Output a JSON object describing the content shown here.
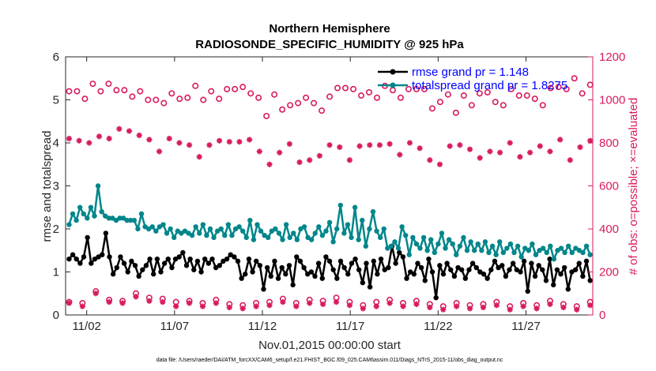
{
  "chart_data": {
    "type": "line",
    "title": "Northern Hemisphere",
    "subtitle": "RADIOSONDE_SPECIFIC_HUMIDITY @ 925 hPa",
    "xlabel": "Nov.01,2015 00:00:00 start",
    "ylabel": "rmse and totalspread",
    "ylabel_right": "# of obs: o=possible; ×=evaluated",
    "xlim": [
      0.8,
      30.8
    ],
    "ylim": [
      0,
      6
    ],
    "ylim_right": [
      0,
      1200
    ],
    "x_ticks": [
      2,
      7,
      12,
      17,
      22,
      27
    ],
    "x_tick_labels": [
      "11/02",
      "11/07",
      "11/12",
      "11/17",
      "11/22",
      "11/27"
    ],
    "y_ticks": [
      0,
      1,
      2,
      3,
      4,
      5,
      6
    ],
    "y_right_ticks": [
      0,
      200,
      400,
      600,
      800,
      1000,
      1200
    ],
    "legend": {
      "location": "top-right",
      "entries": [
        "rmse grand pr = 1.148",
        "totalspread grand pr = 1.8275"
      ]
    },
    "footnote": "data file: /Users/raeder/DAI/ATM_forcXX/CAM6_setup/f.e21.FHIST_BGC.f09_025.CAM6assim.011/Diags_NTrS_2015-11/obs_diag_output.nc",
    "series": [
      {
        "name": "rmse",
        "axis": "left",
        "color": "#000000",
        "marker": "dot",
        "values": [
          1.3,
          1.4,
          1.3,
          1.2,
          1.35,
          1.8,
          1.2,
          1.3,
          1.35,
          1.4,
          1.9,
          1.35,
          0.95,
          1.1,
          1.35,
          1.2,
          1.0,
          1.25,
          1.15,
          0.9,
          1.05,
          1.15,
          1.3,
          0.95,
          1.3,
          1.0,
          1.2,
          1.3,
          1.1,
          1.3,
          1.35,
          1.45,
          1.15,
          1.3,
          1.05,
          1.25,
          1.0,
          1.3,
          1.2,
          1.3,
          1.1,
          1.15,
          1.25,
          1.3,
          1.4,
          1.35,
          1.25,
          0.85,
          0.95,
          1.3,
          1.0,
          1.25,
          1.15,
          0.6,
          1.1,
          0.9,
          1.25,
          0.85,
          1.1,
          0.95,
          1.15,
          0.7,
          1.35,
          1.25,
          1.1,
          0.95,
          1.0,
          0.9,
          1.2,
          0.85,
          1.35,
          1.25,
          1.05,
          0.85,
          1.25,
          1.1,
          0.95,
          1.2,
          1.3,
          1.05,
          0.75,
          1.2,
          0.65,
          1.25,
          0.95,
          1.3,
          1.05,
          1.1,
          1.6,
          1.2,
          1.45,
          1.35,
          0.85,
          1.0,
          0.95,
          1.2,
          1.1,
          0.8,
          1.3,
          1.0,
          0.4,
          1.15,
          0.95,
          1.2,
          1.05,
          0.9,
          1.1,
          1.05,
          0.85,
          1.05,
          1.2,
          1.1,
          1.0,
          0.95,
          0.85,
          1.05,
          1.25,
          1.1,
          1.15,
          0.9,
          1.05,
          1.2,
          1.05,
          1.0,
          1.25,
          0.55,
          1.2,
          0.9,
          1.15,
          1.05,
          0.8,
          1.3,
          0.7,
          1.05,
          0.95,
          1.1,
          0.6,
          1.0,
          1.05,
          1.2,
          0.9,
          1.25,
          0.8
        ]
      },
      {
        "name": "totalspread",
        "axis": "left",
        "color": "#00868b",
        "marker": "dot",
        "values": [
          2.1,
          2.35,
          2.2,
          2.5,
          2.35,
          2.25,
          2.5,
          2.3,
          3.0,
          2.4,
          2.3,
          2.25,
          2.25,
          2.2,
          2.25,
          2.25,
          2.2,
          2.2,
          2.2,
          2.0,
          2.35,
          2.05,
          2.0,
          2.05,
          1.95,
          2.05,
          2.1,
          1.9,
          2.0,
          1.8,
          1.95,
          1.9,
          1.95,
          1.9,
          1.85,
          2.05,
          1.9,
          2.1,
          1.85,
          2.0,
          1.8,
          1.95,
          2.0,
          1.85,
          2.1,
          1.85,
          2.0,
          2.05,
          1.95,
          1.8,
          2.2,
          1.75,
          2.1,
          1.95,
          1.85,
          1.8,
          1.95,
          2.0,
          1.9,
          1.75,
          2.1,
          1.8,
          1.9,
          1.75,
          2.0,
          2.05,
          1.8,
          1.75,
          1.9,
          2.05,
          1.85,
          1.95,
          2.15,
          1.7,
          2.0,
          2.55,
          1.9,
          2.1,
          1.8,
          2.5,
          1.75,
          2.2,
          1.6,
          2.0,
          2.4,
          1.95,
          1.8,
          2.0,
          1.55,
          1.6,
          1.7,
          1.55,
          2.05,
          1.85,
          1.4,
          1.8,
          1.65,
          1.55,
          1.8,
          1.5,
          1.75,
          1.45,
          1.65,
          1.9,
          1.55,
          1.75,
          1.65,
          1.4,
          1.6,
          1.8,
          1.5,
          1.7,
          1.5,
          1.65,
          1.5,
          1.7,
          1.45,
          1.6,
          1.4,
          1.7,
          1.45,
          1.55,
          1.65,
          1.45,
          1.6,
          1.35,
          1.55,
          1.5,
          1.65,
          1.4,
          1.5,
          1.55,
          1.45,
          1.6,
          1.3,
          1.5,
          1.55,
          1.45,
          1.6,
          1.45,
          1.55,
          1.5,
          1.45,
          1.6,
          1.4
        ]
      },
      {
        "name": "obs possible (upper)",
        "axis": "right",
        "color": "#d81b60",
        "marker": "o",
        "values": [
          1040,
          1040,
          1005,
          1075,
          1040,
          1075,
          1045,
          1045,
          1015,
          1040,
          1000,
          1000,
          985,
          1030,
          1005,
          1010,
          1065,
          1000,
          1040,
          1005,
          1050,
          1050,
          1060,
          1030,
          1010,
          925,
          1025,
          955,
          975,
          985,
          1010,
          985,
          950,
          1015,
          1055,
          1055,
          1050,
          1020,
          1035,
          1010,
          1065,
          1045,
          1010,
          1050,
          1050,
          1050,
          960,
          990,
          1025,
          940,
          1020,
          975,
          1030,
          1035,
          990,
          975,
          1050,
          1020,
          1020,
          1005,
          975,
          1055,
          1060,
          1050,
          1100,
          1030,
          1070
        ]
      },
      {
        "name": "obs evaluated (upper)",
        "axis": "right",
        "color": "#d81b60",
        "marker": "x",
        "values": [
          820,
          810,
          800,
          830,
          820,
          865,
          855,
          835,
          815,
          760,
          820,
          800,
          790,
          735,
          790,
          810,
          805,
          805,
          815,
          760,
          700,
          755,
          795,
          710,
          720,
          740,
          790,
          780,
          720,
          785,
          790,
          790,
          795,
          745,
          800,
          775,
          720,
          700,
          785,
          790,
          770,
          730,
          760,
          755,
          800,
          735,
          755,
          785,
          760,
          815,
          720,
          780,
          810
        ]
      },
      {
        "name": "obs possible (lower)",
        "axis": "right",
        "color": "#d81b60",
        "marker": "o",
        "values": [
          60,
          55,
          110,
          70,
          65,
          100,
          80,
          75,
          60,
          65,
          55,
          70,
          50,
          45,
          55,
          60,
          75,
          55,
          70,
          65,
          80,
          60,
          45,
          60,
          70,
          55,
          65,
          50,
          40,
          55,
          45,
          50,
          60,
          40,
          55,
          45,
          65,
          50,
          40,
          60
        ]
      },
      {
        "name": "obs evaluated (lower)",
        "axis": "right",
        "color": "#d81b60",
        "marker": "x",
        "values": [
          55,
          40,
          100,
          60,
          55,
          85,
          65,
          60,
          40,
          55,
          40,
          55,
          35,
          30,
          40,
          45,
          60,
          40,
          55,
          50,
          60,
          45,
          30,
          40,
          55,
          40,
          50,
          35,
          25,
          40,
          30,
          35,
          45,
          25,
          40,
          30,
          50,
          35,
          25,
          45
        ]
      }
    ]
  }
}
